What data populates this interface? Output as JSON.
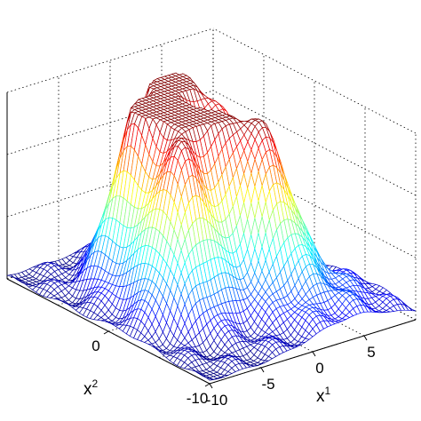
{
  "chart_data": {
    "type": "surface",
    "title": "",
    "xlabel": "x",
    "xlabel_sup": "1",
    "ylabel": "x",
    "ylabel_sup": "2",
    "zlabel": "",
    "x_ticks": [
      "-10",
      "-5",
      "0",
      "5"
    ],
    "y_ticks": [
      "-10",
      "0"
    ],
    "xlim": [
      -10,
      10
    ],
    "ylim": [
      -10,
      10
    ],
    "zlim": [
      0,
      3
    ],
    "grid": true,
    "grid_style": "dotted",
    "colormap": "jet",
    "colors": [
      "#00008f",
      "#0000ff",
      "#00ffff",
      "#ffff00",
      "#ff0000",
      "#800000"
    ],
    "peaks": [
      {
        "x": -4,
        "y": 3,
        "height": 2.8
      },
      {
        "x": -1,
        "y": 0,
        "height": 2.6
      },
      {
        "x": 2,
        "y": -3,
        "height": 2.3
      },
      {
        "x": -5,
        "y": -2,
        "height": 2.4
      },
      {
        "x": 0,
        "y": 5,
        "height": 2.5
      },
      {
        "x": 4,
        "y": 2,
        "height": 2.0
      },
      {
        "x": 3,
        "y": 6,
        "height": 1.9
      }
    ]
  }
}
